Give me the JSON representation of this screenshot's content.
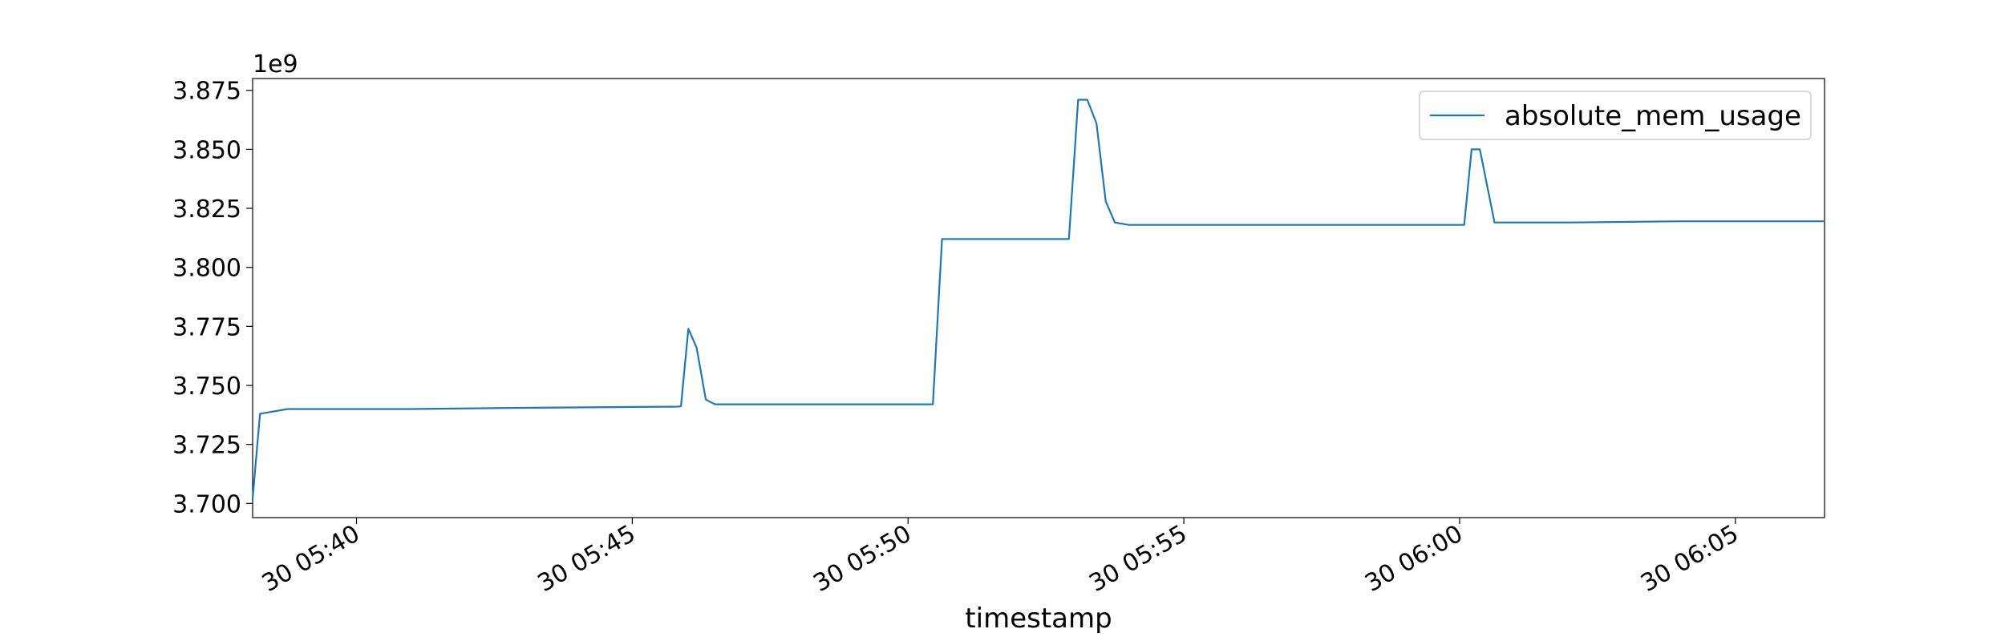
{
  "chart_data": {
    "type": "line",
    "xlabel": "timestamp",
    "ylabel": "",
    "y_offset_label": "1e9",
    "y_scale": 1000000000,
    "xlim": [
      "30 05:38:07",
      "30 06:06:37"
    ],
    "ylim": [
      3.694,
      3.88
    ],
    "x_ticks": [
      {
        "label": "30 05:40",
        "t": "30 05:40:00"
      },
      {
        "label": "30 05:45",
        "t": "30 05:45:00"
      },
      {
        "label": "30 05:50",
        "t": "30 05:50:00"
      },
      {
        "label": "30 05:55",
        "t": "30 05:55:00"
      },
      {
        "label": "30 06:00",
        "t": "30 06:00:00"
      },
      {
        "label": "30 06:05",
        "t": "30 06:05:00"
      }
    ],
    "y_ticks": [
      {
        "label": "3.700",
        "v": 3.7
      },
      {
        "label": "3.725",
        "v": 3.725
      },
      {
        "label": "3.750",
        "v": 3.75
      },
      {
        "label": "3.775",
        "v": 3.775
      },
      {
        "label": "3.800",
        "v": 3.8
      },
      {
        "label": "3.825",
        "v": 3.825
      },
      {
        "label": "3.850",
        "v": 3.85
      },
      {
        "label": "3.875",
        "v": 3.875
      }
    ],
    "legend_position": "top-right",
    "grid": false,
    "series": [
      {
        "name": "absolute_mem_usage",
        "color": "#1f77b4",
        "points": [
          [
            "30 05:38:07",
            3.702
          ],
          [
            "30 05:38:15",
            3.738
          ],
          [
            "30 05:38:30",
            3.739
          ],
          [
            "30 05:38:45",
            3.74
          ],
          [
            "30 05:39:15",
            3.74
          ],
          [
            "30 05:41:00",
            3.74
          ],
          [
            "30 05:43:00",
            3.7405
          ],
          [
            "30 05:45:50",
            3.741
          ],
          [
            "30 05:45:53",
            3.7412
          ],
          [
            "30 05:46:01",
            3.774
          ],
          [
            "30 05:46:10",
            3.766
          ],
          [
            "30 05:46:20",
            3.744
          ],
          [
            "30 05:46:30",
            3.742
          ],
          [
            "30 05:48:00",
            3.742
          ],
          [
            "30 05:50:20",
            3.742
          ],
          [
            "30 05:50:27",
            3.742
          ],
          [
            "30 05:50:37",
            3.812
          ],
          [
            "30 05:52:55",
            3.812
          ],
          [
            "30 05:53:05",
            3.871
          ],
          [
            "30 05:53:15",
            3.871
          ],
          [
            "30 05:53:25",
            3.861
          ],
          [
            "30 05:53:35",
            3.828
          ],
          [
            "30 05:53:45",
            3.819
          ],
          [
            "30 05:54:00",
            3.818
          ],
          [
            "30 05:57:00",
            3.818
          ],
          [
            "30 06:00:05",
            3.818
          ],
          [
            "30 06:00:13",
            3.85
          ],
          [
            "30 06:00:22",
            3.85
          ],
          [
            "30 06:00:38",
            3.819
          ],
          [
            "30 06:02:00",
            3.819
          ],
          [
            "30 06:04:00",
            3.8195
          ],
          [
            "30 06:06:37",
            3.8195
          ]
        ]
      }
    ]
  }
}
